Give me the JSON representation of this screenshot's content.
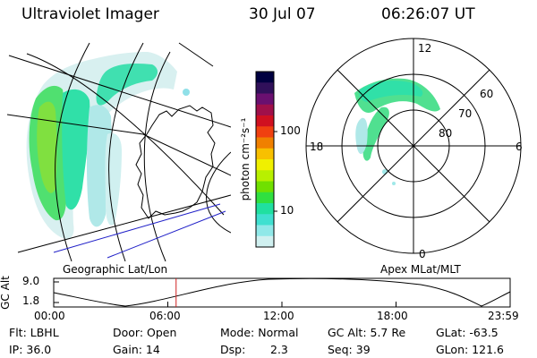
{
  "header": {
    "title": "Ultraviolet Imager",
    "date": "30 Jul 07",
    "time": "06:26:07 UT"
  },
  "colorbar": {
    "label": "photon cm⁻²s⁻¹",
    "ticks": [
      "100",
      "10"
    ],
    "colors": [
      "#000040",
      "#30105a",
      "#6a1070",
      "#a0104a",
      "#d01020",
      "#f04010",
      "#f08000",
      "#f8c000",
      "#f0f000",
      "#b8f000",
      "#70e000",
      "#30e040",
      "#20e0a0",
      "#40e0d0",
      "#90e8e8",
      "#d0f0f0"
    ]
  },
  "panels": {
    "geo_label": "Geographic Lat/Lon",
    "apex_label": "Apex MLat/MLT"
  },
  "polar": {
    "labels": [
      "12",
      "60",
      "70",
      "80",
      "18",
      "6",
      "0"
    ]
  },
  "altitude_plot": {
    "ylabel": "GC Alt",
    "yticks": [
      "9.0",
      "1.8"
    ],
    "xticks": [
      "00:00",
      "06:00",
      "12:00",
      "18:00",
      "23:59"
    ],
    "marker_hours": 6.4357
  },
  "info": {
    "flt": "Flt: LBHL",
    "ip": "IP: 36.0",
    "door": "Door: Open",
    "gain": "Gain: 14",
    "mode": "Mode: Normal",
    "dsp_label": "Dsp:",
    "dsp_value": "2.3",
    "gcalt": "GC Alt: 5.7 Re",
    "seq": "Seq: 39",
    "glat": "GLat: -63.5",
    "glon": "GLon: 121.6"
  }
}
